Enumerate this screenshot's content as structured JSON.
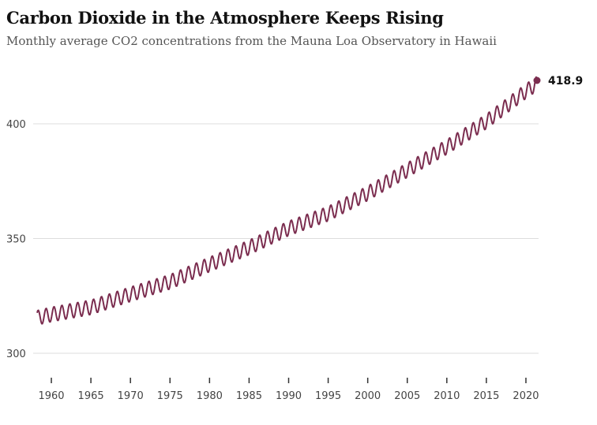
{
  "header": {
    "title": "Carbon Dioxide in the Atmosphere Keeps Rising",
    "subtitle": "Monthly average CO2 concentrations from the Mauna Loa Observatory in Hawaii"
  },
  "colors": {
    "series": "#7b2d4f",
    "grid": "#dddddd",
    "axis_tick": "#333333"
  },
  "chart_data": {
    "type": "line",
    "title": "Carbon Dioxide in the Atmosphere Keeps Rising",
    "subtitle": "Monthly average CO2 concentrations from the Mauna Loa Observatory in Hawaii",
    "xlabel": "",
    "ylabel": "",
    "x_range": [
      1958.2,
      2021.4
    ],
    "ylim": [
      300,
      420
    ],
    "y_ticks": [
      300,
      350,
      400
    ],
    "y_tick_labels": [
      "300",
      "350",
      "400"
    ],
    "x_ticks": [
      1960,
      1965,
      1970,
      1975,
      1980,
      1985,
      1990,
      1995,
      2000,
      2005,
      2010,
      2015,
      2020
    ],
    "x_tick_labels": [
      "1960",
      "1965",
      "1970",
      "1975",
      "1980",
      "1985",
      "1990",
      "1995",
      "2000",
      "2005",
      "2010",
      "2015",
      "2020"
    ],
    "grid": "horizontal",
    "legend": "none",
    "series": [
      {
        "trend_annual_means": [
          [
            1958,
            315.3
          ],
          [
            1960,
            316.9
          ],
          [
            1965,
            320.0
          ],
          [
            1970,
            325.7
          ],
          [
            1975,
            331.1
          ],
          [
            1980,
            338.7
          ],
          [
            1985,
            346.1
          ],
          [
            1990,
            354.4
          ],
          [
            1995,
            360.8
          ],
          [
            2000,
            369.7
          ],
          [
            2005,
            379.8
          ],
          [
            2010,
            389.9
          ],
          [
            2015,
            401.0
          ],
          [
            2020,
            414.2
          ],
          [
            2021.4,
            417.5
          ]
        ],
        "seasonal_amplitude": 3.2,
        "seasonal_peak_month": 5,
        "data_start": 1958.2,
        "data_end": 2021.4
      }
    ],
    "annotations": [
      {
        "x": 2021.4,
        "y": 418.9,
        "label": "418.9"
      }
    ]
  }
}
